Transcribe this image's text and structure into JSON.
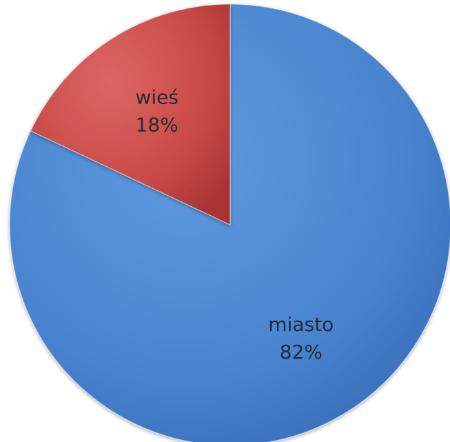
{
  "chart_data": {
    "type": "pie",
    "slices": [
      {
        "label": "miasto",
        "value": 82,
        "value_label": "82%",
        "color": "#4a84cf"
      },
      {
        "label": "wieś",
        "value": 18,
        "value_label": "18%",
        "color": "#c84a47"
      }
    ],
    "legend": "none",
    "grid": false,
    "style": "3d-shaded"
  }
}
